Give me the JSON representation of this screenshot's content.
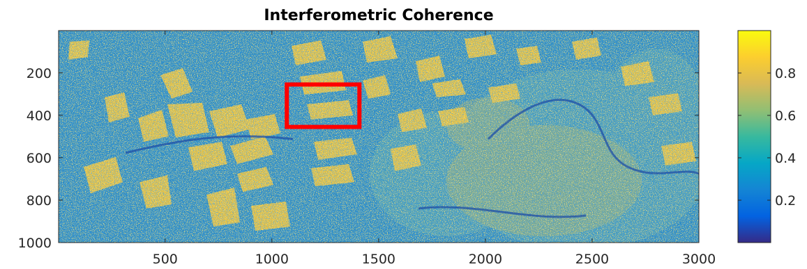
{
  "chart_data": {
    "type": "heatmap",
    "title": "Interferometric Coherence",
    "xlabel": "",
    "ylabel": "",
    "x_range": [
      1,
      3000
    ],
    "y_range": [
      1,
      1000
    ],
    "y_reversed": true,
    "x_ticks": [
      500,
      1000,
      1500,
      2000,
      2500,
      3000
    ],
    "x_tick_labels": [
      "500",
      "1000",
      "1500",
      "2000",
      "2500",
      "3000"
    ],
    "y_ticks": [
      200,
      400,
      600,
      800,
      1000
    ],
    "y_tick_labels": [
      "200",
      "400",
      "600",
      "800",
      "1000"
    ],
    "colormap": "parula",
    "color_range": [
      0,
      1
    ],
    "colorbar": {
      "ticks": [
        0.2,
        0.4,
        0.6,
        0.8
      ],
      "tick_labels": [
        "0.2",
        "0.4",
        "0.6",
        "0.8"
      ],
      "placement": "right"
    },
    "colormap_stops": [
      "#352a87",
      "#0363e1",
      "#1485d4",
      "#06a7c6",
      "#38b99e",
      "#92bf73",
      "#d9ba56",
      "#fcce2e",
      "#f9fb0e"
    ],
    "annotation": {
      "shape": "rectangle",
      "color": "#ff0000",
      "x_range": [
        1070,
        1410
      ],
      "y_range": [
        255,
        455
      ]
    },
    "grid": false
  }
}
